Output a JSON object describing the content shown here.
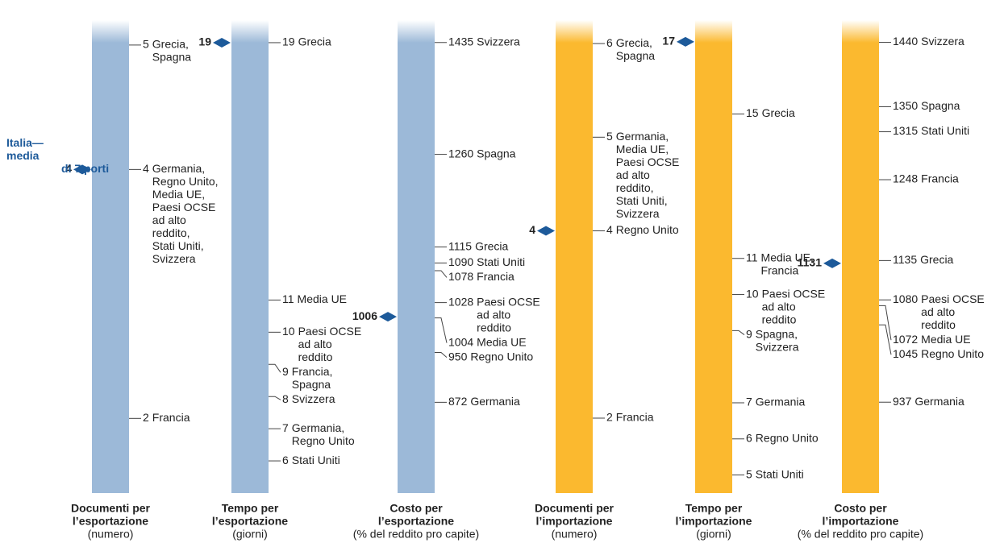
{
  "chart_data": [
    {
      "type": "scale",
      "title": [
        "Documenti per",
        "l’esportazione"
      ],
      "unit": "(numero)",
      "color": "#9cb9d8",
      "ylim": [
        1.4,
        5.2
      ],
      "annotation": [
        "Italia—",
        "media",
        "di 7 porti"
      ],
      "italia": 4,
      "items": [
        {
          "value": 5,
          "label": [
            "Grecia,",
            "Spagna"
          ]
        },
        {
          "value": 4,
          "label": [
            "Germania,",
            "Regno Unito,",
            "Media UE,",
            "Paesi OCSE",
            "ad alto",
            "reddito,",
            "Stati Uniti,",
            "Svizzera"
          ]
        },
        {
          "value": 2,
          "label": [
            "Francia"
          ]
        }
      ]
    },
    {
      "type": "scale",
      "title": [
        "Tempo per",
        "l’esportazione"
      ],
      "unit": "(giorni)",
      "color": "#9cb9d8",
      "ylim": [
        5,
        19.7
      ],
      "italia": 19,
      "items": [
        {
          "value": 19,
          "label": [
            "Grecia"
          ]
        },
        {
          "value": 11,
          "label": [
            "Media UE"
          ]
        },
        {
          "value": 10,
          "label": [
            "Paesi OCSE",
            "ad alto",
            "reddito"
          ]
        },
        {
          "value": 9,
          "label": [
            "Francia,",
            "Spagna"
          ]
        },
        {
          "value": 8,
          "label": [
            "Svizzera"
          ]
        },
        {
          "value": 7,
          "label": [
            "Germania,",
            "Regno Unito"
          ]
        },
        {
          "value": 6,
          "label": [
            "Stati Uniti"
          ]
        }
      ]
    },
    {
      "type": "scale",
      "title": [
        "Costo per",
        "l’esportazione"
      ],
      "unit": "(% del reddito pro capite)",
      "color": "#9cb9d8",
      "ylim": [
        730,
        1470
      ],
      "italia": 1006,
      "items": [
        {
          "value": 1435,
          "label": [
            "Svizzera"
          ]
        },
        {
          "value": 1260,
          "label": [
            "Spagna"
          ]
        },
        {
          "value": 1115,
          "label": [
            "Grecia"
          ]
        },
        {
          "value": 1090,
          "label": [
            "Stati Uniti"
          ]
        },
        {
          "value": 1078,
          "label": [
            "Francia"
          ]
        },
        {
          "value": 1028,
          "label": [
            "Paesi OCSE",
            "ad alto",
            "reddito"
          ]
        },
        {
          "value": 1004,
          "label": [
            "Media UE"
          ]
        },
        {
          "value": 950,
          "label": [
            "Regno Unito"
          ]
        },
        {
          "value": 872,
          "label": [
            "Germania"
          ]
        }
      ]
    },
    {
      "type": "scale",
      "title": [
        "Documenti per",
        "l’importazione"
      ],
      "unit": "(numero)",
      "color": "#fbb92f",
      "ylim": [
        1.2,
        6.25
      ],
      "italia": 4,
      "items": [
        {
          "value": 6,
          "label": [
            "Grecia,",
            "Spagna"
          ]
        },
        {
          "value": 5,
          "label": [
            "Germania,",
            "Media UE,",
            "Paesi OCSE",
            "ad alto",
            "reddito,",
            "Stati Uniti,",
            "Svizzera"
          ]
        },
        {
          "value": 4,
          "label": [
            "Regno Unito"
          ]
        },
        {
          "value": 2,
          "label": [
            "Francia"
          ]
        }
      ]
    },
    {
      "type": "scale",
      "title": [
        "Tempo per",
        "l’importazione"
      ],
      "unit": "(giorni)",
      "color": "#fbb92f",
      "ylim": [
        4.5,
        17.6
      ],
      "italia": 17,
      "items": [
        {
          "value": 15,
          "label": [
            "Grecia"
          ]
        },
        {
          "value": 11,
          "label": [
            "Media UE,",
            "Francia"
          ]
        },
        {
          "value": 10,
          "label": [
            "Paesi OCSE",
            "ad alto",
            "reddito"
          ]
        },
        {
          "value": 9,
          "label": [
            "Spagna,",
            "Svizzera"
          ]
        },
        {
          "value": 7,
          "label": [
            "Germania"
          ]
        },
        {
          "value": 6,
          "label": [
            "Regno Unito"
          ]
        },
        {
          "value": 5,
          "label": [
            "Stati Uniti"
          ]
        }
      ]
    },
    {
      "type": "scale",
      "title": [
        "Costo per",
        "l’importazione"
      ],
      "unit": "(% del reddito pro capite)",
      "color": "#fbb92f",
      "ylim": [
        810,
        1471
      ],
      "italia": 1131,
      "items": [
        {
          "value": 1440,
          "label": [
            "Svizzera"
          ]
        },
        {
          "value": 1350,
          "label": [
            "Spagna"
          ]
        },
        {
          "value": 1315,
          "label": [
            "Stati Uniti"
          ]
        },
        {
          "value": 1248,
          "label": [
            "Francia"
          ]
        },
        {
          "value": 1135,
          "label": [
            "Grecia"
          ]
        },
        {
          "value": 1080,
          "label": [
            "Paesi OCSE",
            "ad alto",
            "reddito"
          ]
        },
        {
          "value": 1072,
          "label": [
            "Media UE"
          ]
        },
        {
          "value": 1045,
          "label": [
            "Regno Unito"
          ]
        },
        {
          "value": 937,
          "label": [
            "Germania"
          ]
        }
      ]
    }
  ]
}
